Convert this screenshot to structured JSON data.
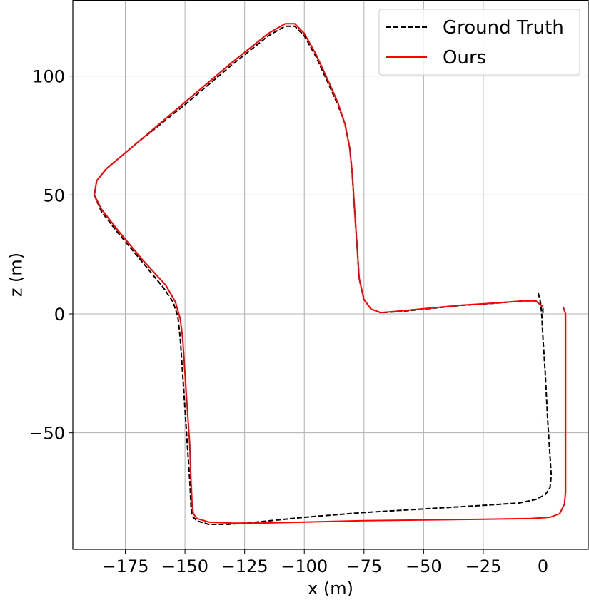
{
  "chart_data": {
    "type": "line",
    "xlabel": "x (m)",
    "ylabel": "z (m)",
    "xlim": [
      -197,
      19
    ],
    "ylim": [
      -99,
      132
    ],
    "xticks": [
      -175,
      -150,
      -125,
      -100,
      -75,
      -50,
      -25,
      0
    ],
    "yticks": [
      -50,
      0,
      50,
      100
    ],
    "xtick_labels": [
      "−175",
      "−150",
      "−125",
      "−100",
      "−75",
      "−50",
      "−25",
      "0"
    ],
    "ytick_labels": [
      "−50",
      "0",
      "50",
      "100"
    ],
    "grid": true,
    "legend_position": "top-right",
    "series": [
      {
        "name": "Ground Truth",
        "color": "#000000",
        "dash": "dashed",
        "points": [
          [
            -2,
            9
          ],
          [
            -1,
            5
          ],
          [
            -0.5,
            0
          ],
          [
            0,
            -10
          ],
          [
            1,
            -25
          ],
          [
            2,
            -45
          ],
          [
            3,
            -60
          ],
          [
            3.5,
            -68
          ],
          [
            3,
            -73
          ],
          [
            1,
            -76
          ],
          [
            -3,
            -78
          ],
          [
            -10,
            -79.5
          ],
          [
            -25,
            -80.5
          ],
          [
            -50,
            -82
          ],
          [
            -75,
            -83.5
          ],
          [
            -100,
            -85.5
          ],
          [
            -120,
            -87.5
          ],
          [
            -132,
            -88.5
          ],
          [
            -140,
            -88.5
          ],
          [
            -145,
            -87
          ],
          [
            -147,
            -85
          ],
          [
            -147.5,
            -81
          ],
          [
            -148,
            -70
          ],
          [
            -149,
            -55
          ],
          [
            -150,
            -40
          ],
          [
            -151,
            -25
          ],
          [
            -152,
            -10
          ],
          [
            -153,
            -1
          ],
          [
            -155,
            5
          ],
          [
            -159,
            11
          ],
          [
            -168,
            22
          ],
          [
            -178,
            34
          ],
          [
            -185,
            43
          ],
          [
            -188,
            50
          ],
          [
            -187,
            56
          ],
          [
            -183,
            61
          ],
          [
            -170,
            72
          ],
          [
            -150,
            88
          ],
          [
            -130,
            105
          ],
          [
            -115,
            117
          ],
          [
            -108,
            121
          ],
          [
            -104,
            121
          ],
          [
            -100,
            117
          ],
          [
            -95,
            108
          ],
          [
            -90,
            97
          ],
          [
            -86,
            88
          ],
          [
            -83,
            80
          ],
          [
            -81,
            70
          ],
          [
            -80,
            60
          ],
          [
            -79,
            45
          ],
          [
            -78,
            30
          ],
          [
            -77,
            15
          ],
          [
            -75,
            6
          ],
          [
            -72,
            2
          ],
          [
            -68,
            0.5
          ],
          [
            -60,
            1
          ],
          [
            -50,
            2
          ],
          [
            -35,
            3.5
          ],
          [
            -20,
            4.5
          ],
          [
            -8,
            5.5
          ],
          [
            -3,
            5.5
          ],
          [
            0,
            3
          ],
          [
            0,
            0
          ]
        ]
      },
      {
        "name": "Ours",
        "color": "#ff0000",
        "dash": "solid",
        "points": [
          [
            8.5,
            3
          ],
          [
            9.5,
            0
          ],
          [
            9.5,
            -10
          ],
          [
            9.5,
            -30
          ],
          [
            9.5,
            -50
          ],
          [
            9.5,
            -65
          ],
          [
            9.5,
            -75
          ],
          [
            9,
            -80
          ],
          [
            7,
            -84
          ],
          [
            3,
            -85.5
          ],
          [
            -5,
            -86
          ],
          [
            -25,
            -86.3
          ],
          [
            -50,
            -86.6
          ],
          [
            -75,
            -86.9
          ],
          [
            -100,
            -87.5
          ],
          [
            -120,
            -88
          ],
          [
            -130,
            -88
          ],
          [
            -140,
            -87.5
          ],
          [
            -145,
            -86
          ],
          [
            -146.5,
            -84
          ],
          [
            -147,
            -80
          ],
          [
            -147.5,
            -70
          ],
          [
            -148,
            -55
          ],
          [
            -149,
            -40
          ],
          [
            -150,
            -25
          ],
          [
            -151,
            -10
          ],
          [
            -152,
            -2
          ],
          [
            -154,
            5
          ],
          [
            -158,
            12
          ],
          [
            -168,
            23
          ],
          [
            -178,
            35
          ],
          [
            -185,
            44
          ],
          [
            -188,
            50
          ],
          [
            -187,
            56
          ],
          [
            -183,
            61
          ],
          [
            -170,
            72
          ],
          [
            -150,
            89
          ],
          [
            -130,
            106
          ],
          [
            -115,
            118
          ],
          [
            -108,
            122
          ],
          [
            -104,
            122
          ],
          [
            -100,
            118
          ],
          [
            -95,
            109
          ],
          [
            -90,
            98
          ],
          [
            -86,
            89
          ],
          [
            -83,
            80
          ],
          [
            -81,
            70
          ],
          [
            -80,
            60
          ],
          [
            -79,
            45
          ],
          [
            -78,
            30
          ],
          [
            -77,
            15
          ],
          [
            -75,
            6
          ],
          [
            -72,
            2
          ],
          [
            -68,
            0.5
          ],
          [
            -60,
            1.2
          ],
          [
            -50,
            2.2
          ],
          [
            -35,
            3.6
          ],
          [
            -20,
            4.6
          ],
          [
            -8,
            5.5
          ],
          [
            -3,
            5.5
          ],
          [
            0,
            3
          ]
        ]
      }
    ]
  }
}
